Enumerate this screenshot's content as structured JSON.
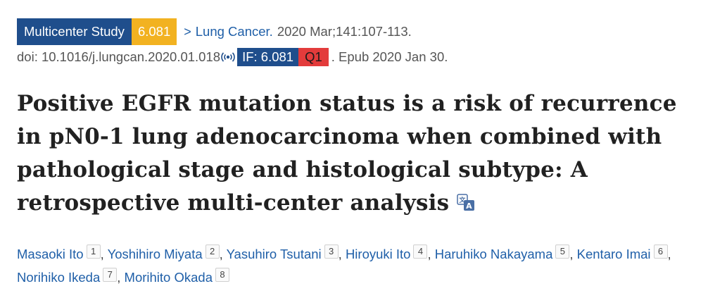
{
  "citation": {
    "study_type_badge": "Multicenter Study",
    "score_badge": "6.081",
    "chevron": ">",
    "journal": "Lung Cancer.",
    "issue": "2020 Mar;141:107-113.",
    "doi": "doi: 10.1016/j.lungcan.2020.01.018",
    "impact_factor": "IF: 6.081",
    "quartile": "Q1",
    "epub": ". Epub 2020 Jan 30.",
    "colors": {
      "study_badge": "#1f4e8c",
      "score_badge": "#f2b221",
      "quartile_badge": "#e33b3b",
      "link": "#1f5fa8"
    }
  },
  "article": {
    "title": "Positive EGFR mutation status is a risk of recurrence in pN0-1 lung adenocarcinoma when combined with pathological stage and histological subtype: A retrospective multi-center analysis",
    "translate_icon": "translate-icon"
  },
  "authors": [
    {
      "name": "Masaoki Ito",
      "aff": "1",
      "sep": ","
    },
    {
      "name": "Yoshihiro Miyata",
      "aff": "2",
      "sep": ","
    },
    {
      "name": "Yasuhiro Tsutani",
      "aff": "3",
      "sep": ","
    },
    {
      "name": "Hiroyuki Ito",
      "aff": "4",
      "sep": ","
    },
    {
      "name": "Haruhiko Nakayama",
      "aff": "5",
      "sep": ","
    },
    {
      "name": "Kentaro Imai",
      "aff": "6",
      "sep": ","
    },
    {
      "name": "Norihiko Ikeda",
      "aff": "7",
      "sep": ","
    },
    {
      "name": "Morihito Okada",
      "aff": "8",
      "sep": ""
    }
  ]
}
